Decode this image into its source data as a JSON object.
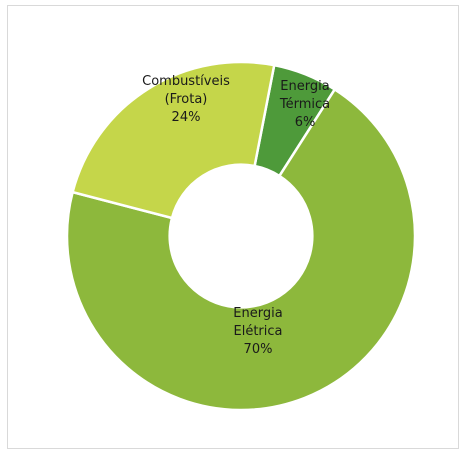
{
  "chart_data": {
    "type": "pie",
    "variant": "donut",
    "title": "",
    "start_angle_deg": 79,
    "hole_ratio": 0.41,
    "slices": [
      {
        "label_lines": [
          "Energia",
          "Térmica",
          "6%"
        ],
        "value": 6,
        "color": "#4e9a3a"
      },
      {
        "label_lines": [
          "Energia",
          "Elétrica",
          "70%"
        ],
        "value": 70,
        "color": "#8db83c"
      },
      {
        "label_lines": [
          "Combustíveis",
          "(Frota)",
          "24%"
        ],
        "value": 24,
        "color": "#c5d64a"
      }
    ]
  }
}
